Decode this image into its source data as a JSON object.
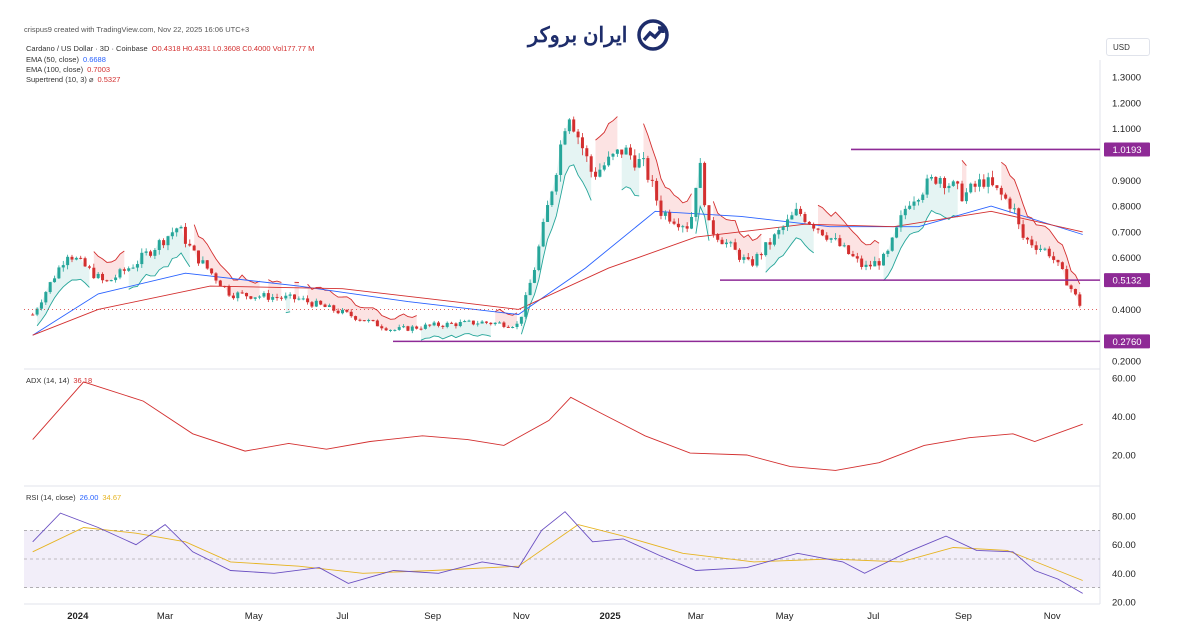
{
  "header": {
    "publish_line": "crispus9 created with TradingView.com, Nov 22, 2025 16:06 UTC+3",
    "symbol_line": "Cardano / US Dollar · 3D · Coinbase",
    "ohlc": "O0.4318 H0.4331 L0.3608 C0.4000 Vol177.77 M",
    "ema50": {
      "label": "EMA (50, close)",
      "value": "0.6688"
    },
    "ema100": {
      "label": "EMA (100, close)",
      "value": "0.7003"
    },
    "supertrend": {
      "label": "Supertrend (10, 3) ⌀",
      "value": "0.5327"
    },
    "adx": {
      "label": "ADX (14, 14)",
      "value": "36.18"
    },
    "rsi": {
      "label": "RSI (14, close)",
      "value": "26.00",
      "value2": "34.67"
    }
  },
  "logo": {
    "text": "ایران بروکر",
    "icon": "trend-arrow-icon"
  },
  "currency": "USD",
  "colors": {
    "up": "#26a69a",
    "down": "#d32f2f",
    "level": "#8e2a96",
    "ema50": "#2962ff",
    "ema100": "#d32f2f",
    "adx": "#d32f2f",
    "rsi": "#6a4fc2",
    "rsi_ma": "#e6b422"
  },
  "chart_data": [
    {
      "type": "candlestick",
      "title": "Cardano / US Dollar · 3D · Coinbase",
      "x_ticks": [
        "2024",
        "Mar",
        "May",
        "Jul",
        "Sep",
        "Nov",
        "2025",
        "Mar",
        "May",
        "Jul",
        "Sep",
        "Nov"
      ],
      "y_ticks": [
        "1.3000",
        "1.2000",
        "1.1000",
        "1.0193",
        "0.9000",
        "0.8000",
        "0.7000",
        "0.6000",
        "0.5132",
        "0.4000",
        "0.2760",
        "0.2000"
      ],
      "ylim": [
        0.2,
        1.3
      ],
      "levels": [
        1.0193,
        0.5132,
        0.276
      ],
      "close_path": [
        [
          "2023-12-01",
          0.38
        ],
        [
          "2023-12-25",
          0.62
        ],
        [
          "2024-01-20",
          0.5
        ],
        [
          "2024-02-10",
          0.58
        ],
        [
          "2024-03-10",
          0.72
        ],
        [
          "2024-03-20",
          0.62
        ],
        [
          "2024-04-15",
          0.46
        ],
        [
          "2024-06-01",
          0.44
        ],
        [
          "2024-07-05",
          0.38
        ],
        [
          "2024-08-05",
          0.32
        ],
        [
          "2024-09-05",
          0.34
        ],
        [
          "2024-10-05",
          0.35
        ],
        [
          "2024-10-30",
          0.34
        ],
        [
          "2024-11-10",
          0.56
        ],
        [
          "2024-11-25",
          0.95
        ],
        [
          "2024-12-03",
          1.18
        ],
        [
          "2024-12-20",
          0.92
        ],
        [
          "2025-01-10",
          1.02
        ],
        [
          "2025-01-25",
          0.95
        ],
        [
          "2025-02-05",
          0.78
        ],
        [
          "2025-02-25",
          0.72
        ],
        [
          "2025-03-03",
          0.98
        ],
        [
          "2025-03-10",
          0.72
        ],
        [
          "2025-04-07",
          0.57
        ],
        [
          "2025-05-10",
          0.78
        ],
        [
          "2025-06-01",
          0.68
        ],
        [
          "2025-06-25",
          0.56
        ],
        [
          "2025-07-10",
          0.6
        ],
        [
          "2025-07-25",
          0.82
        ],
        [
          "2025-08-15",
          0.92
        ],
        [
          "2025-09-01",
          0.84
        ],
        [
          "2025-09-15",
          0.9
        ],
        [
          "2025-10-05",
          0.8
        ],
        [
          "2025-10-11",
          0.68
        ],
        [
          "2025-10-30",
          0.62
        ],
        [
          "2025-11-10",
          0.52
        ],
        [
          "2025-11-22",
          0.4
        ]
      ],
      "ema50": [
        [
          "2023-12-01",
          0.3
        ],
        [
          "2024-01-15",
          0.46
        ],
        [
          "2024-03-15",
          0.54
        ],
        [
          "2024-06-01",
          0.49
        ],
        [
          "2024-08-15",
          0.43
        ],
        [
          "2024-10-30",
          0.38
        ],
        [
          "2024-12-15",
          0.56
        ],
        [
          "2025-02-01",
          0.78
        ],
        [
          "2025-04-01",
          0.76
        ],
        [
          "2025-06-01",
          0.72
        ],
        [
          "2025-08-01",
          0.72
        ],
        [
          "2025-09-20",
          0.8
        ],
        [
          "2025-11-22",
          0.69
        ]
      ],
      "ema100": [
        [
          "2023-12-01",
          0.3
        ],
        [
          "2024-01-15",
          0.4
        ],
        [
          "2024-04-01",
          0.49
        ],
        [
          "2024-07-01",
          0.48
        ],
        [
          "2024-09-15",
          0.43
        ],
        [
          "2024-10-30",
          0.4
        ],
        [
          "2024-12-31",
          0.56
        ],
        [
          "2025-03-01",
          0.68
        ],
        [
          "2025-05-15",
          0.73
        ],
        [
          "2025-07-15",
          0.72
        ],
        [
          "2025-09-20",
          0.78
        ],
        [
          "2025-11-22",
          0.7
        ]
      ]
    },
    {
      "type": "line",
      "title": "ADX (14, 14)",
      "y_ticks": [
        "60.00",
        "40.00",
        "20.00"
      ],
      "ylim": [
        10,
        62
      ],
      "series": [
        {
          "name": "ADX",
          "values": [
            [
              "2023-12-01",
              28
            ],
            [
              "2024-01-05",
              58
            ],
            [
              "2024-02-15",
              48
            ],
            [
              "2024-03-20",
              31
            ],
            [
              "2024-04-25",
              22
            ],
            [
              "2024-05-25",
              26
            ],
            [
              "2024-06-20",
              23
            ],
            [
              "2024-07-20",
              27
            ],
            [
              "2024-08-25",
              30
            ],
            [
              "2024-09-25",
              28
            ],
            [
              "2024-10-20",
              25
            ],
            [
              "2024-11-20",
              38
            ],
            [
              "2024-12-05",
              50
            ],
            [
              "2024-12-25",
              42
            ],
            [
              "2025-01-25",
              30
            ],
            [
              "2025-02-25",
              21
            ],
            [
              "2025-04-05",
              20
            ],
            [
              "2025-05-05",
              14
            ],
            [
              "2025-06-05",
              12
            ],
            [
              "2025-07-05",
              16
            ],
            [
              "2025-08-05",
              25
            ],
            [
              "2025-09-05",
              29
            ],
            [
              "2025-10-05",
              31
            ],
            [
              "2025-10-20",
              27
            ],
            [
              "2025-11-22",
              36
            ]
          ]
        }
      ]
    },
    {
      "type": "line",
      "title": "RSI (14, close)",
      "y_ticks": [
        "80.00",
        "60.00",
        "40.00",
        "20.00"
      ],
      "ylim": [
        20,
        82
      ],
      "bands": [
        70,
        50,
        30
      ],
      "series": [
        {
          "name": "RSI",
          "values": [
            [
              "2023-12-01",
              62
            ],
            [
              "2023-12-20",
              82
            ],
            [
              "2024-01-15",
              72
            ],
            [
              "2024-02-10",
              60
            ],
            [
              "2024-03-01",
              74
            ],
            [
              "2024-03-20",
              55
            ],
            [
              "2024-04-15",
              42
            ],
            [
              "2024-05-15",
              40
            ],
            [
              "2024-06-15",
              44
            ],
            [
              "2024-07-05",
              33
            ],
            [
              "2024-08-05",
              42
            ],
            [
              "2024-09-05",
              40
            ],
            [
              "2024-10-05",
              48
            ],
            [
              "2024-10-30",
              44
            ],
            [
              "2024-11-15",
              70
            ],
            [
              "2024-12-01",
              83
            ],
            [
              "2024-12-20",
              62
            ],
            [
              "2025-01-10",
              64
            ],
            [
              "2025-02-05",
              52
            ],
            [
              "2025-03-01",
              42
            ],
            [
              "2025-04-05",
              44
            ],
            [
              "2025-05-10",
              54
            ],
            [
              "2025-06-10",
              48
            ],
            [
              "2025-06-25",
              40
            ],
            [
              "2025-07-25",
              55
            ],
            [
              "2025-08-20",
              66
            ],
            [
              "2025-09-10",
              56
            ],
            [
              "2025-10-05",
              55
            ],
            [
              "2025-10-20",
              42
            ],
            [
              "2025-11-05",
              36
            ],
            [
              "2025-11-22",
              26
            ]
          ]
        },
        {
          "name": "RSI-based MA",
          "values": [
            [
              "2023-12-01",
              55
            ],
            [
              "2024-01-05",
              72
            ],
            [
              "2024-02-10",
              68
            ],
            [
              "2024-03-15",
              62
            ],
            [
              "2024-04-15",
              48
            ],
            [
              "2024-06-01",
              45
            ],
            [
              "2024-07-15",
              40
            ],
            [
              "2024-09-01",
              42
            ],
            [
              "2024-10-30",
              45
            ],
            [
              "2024-12-10",
              74
            ],
            [
              "2025-01-10",
              66
            ],
            [
              "2025-02-20",
              54
            ],
            [
              "2025-04-10",
              48
            ],
            [
              "2025-06-01",
              50
            ],
            [
              "2025-07-20",
              48
            ],
            [
              "2025-08-25",
              58
            ],
            [
              "2025-10-01",
              56
            ],
            [
              "2025-11-22",
              35
            ]
          ]
        }
      ]
    }
  ]
}
